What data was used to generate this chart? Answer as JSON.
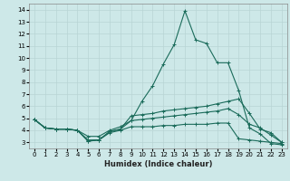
{
  "title": "",
  "xlabel": "Humidex (Indice chaleur)",
  "ylabel": "",
  "bg_color": "#cde8e8",
  "grid_color": "#b8d4d4",
  "line_color": "#1a6b5a",
  "xlim": [
    -0.5,
    23.5
  ],
  "ylim": [
    2.5,
    14.5
  ],
  "xticks": [
    0,
    1,
    2,
    3,
    4,
    5,
    6,
    7,
    8,
    9,
    10,
    11,
    12,
    13,
    14,
    15,
    16,
    17,
    18,
    19,
    20,
    21,
    22,
    23
  ],
  "yticks": [
    3,
    4,
    5,
    6,
    7,
    8,
    9,
    10,
    11,
    12,
    13,
    14
  ],
  "series": [
    [
      4.9,
      4.2,
      4.1,
      4.1,
      4.0,
      3.1,
      3.2,
      3.9,
      4.1,
      4.8,
      6.4,
      7.7,
      9.5,
      11.1,
      13.9,
      11.5,
      11.2,
      9.6,
      9.6,
      7.3,
      4.2,
      3.7,
      2.9,
      2.8
    ],
    [
      4.9,
      4.2,
      4.1,
      4.1,
      4.0,
      3.1,
      3.2,
      3.9,
      4.1,
      5.2,
      5.3,
      5.4,
      5.6,
      5.7,
      5.8,
      5.9,
      6.0,
      6.2,
      6.4,
      6.6,
      5.4,
      4.1,
      3.8,
      3.0
    ],
    [
      4.9,
      4.2,
      4.1,
      4.1,
      4.0,
      3.5,
      3.5,
      4.0,
      4.3,
      4.8,
      4.9,
      5.0,
      5.1,
      5.2,
      5.3,
      5.4,
      5.5,
      5.6,
      5.8,
      5.3,
      4.5,
      4.2,
      3.6,
      3.0
    ],
    [
      4.9,
      4.2,
      4.1,
      4.1,
      4.0,
      3.2,
      3.2,
      3.8,
      4.0,
      4.3,
      4.3,
      4.3,
      4.4,
      4.4,
      4.5,
      4.5,
      4.5,
      4.6,
      4.6,
      3.3,
      3.2,
      3.1,
      3.0,
      2.9
    ]
  ],
  "tick_fontsize": 5.0,
  "xlabel_fontsize": 6.0,
  "linewidth": 0.8,
  "markersize": 2.5,
  "markeredgewidth": 0.7
}
